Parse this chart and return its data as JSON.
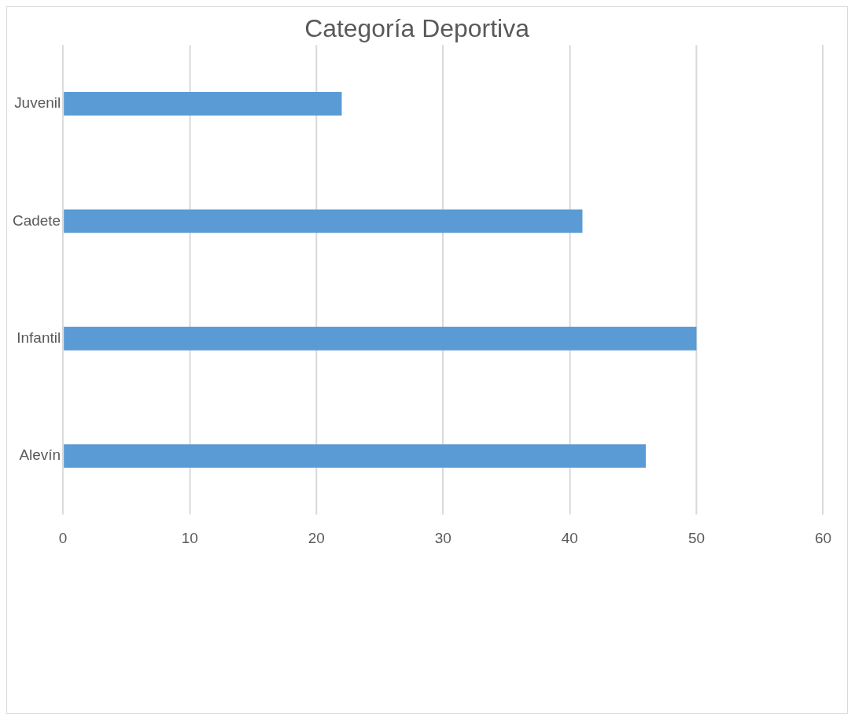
{
  "chart_data": {
    "type": "bar",
    "title": "Categoría Deportiva",
    "orientation": "horizontal",
    "categories": [
      "Juvenil",
      "Cadete",
      "Infantil",
      "Alevín"
    ],
    "values": [
      22,
      41,
      50,
      46
    ],
    "color": "#5b9bd5",
    "xlim": [
      0,
      60
    ],
    "xticks": [
      0,
      10,
      20,
      30,
      40,
      50,
      60
    ],
    "grid": "x",
    "legend": false
  }
}
